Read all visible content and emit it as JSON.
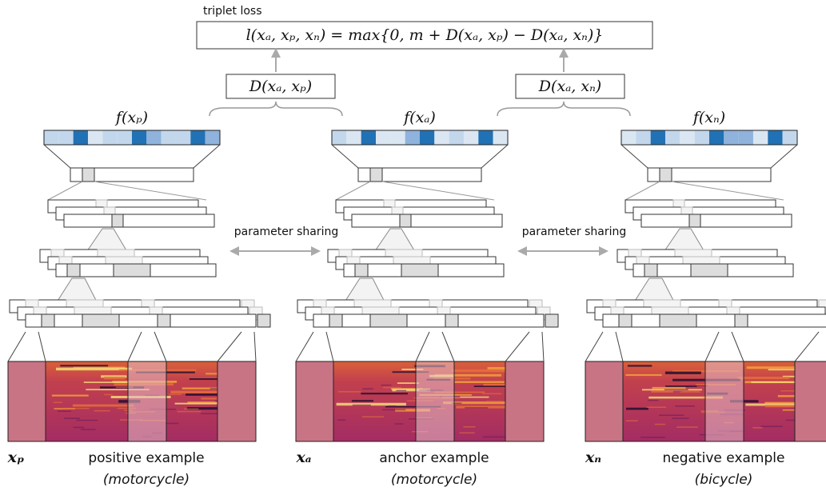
{
  "title": "triplet loss",
  "loss_formula": "l(xₐ, xₚ, xₙ) = max{0, m + D(xₐ, xₚ) − D(xₐ, xₙ)}",
  "distances": [
    "D(xₐ, xₚ)",
    "D(xₐ, xₙ)"
  ],
  "sharing_labels": [
    "parameter sharing",
    "parameter sharing"
  ],
  "branches": [
    {
      "embedding": "f(xₚ)",
      "input": "xₚ",
      "label": "positive example",
      "class": "(motorcycle)"
    },
    {
      "embedding": "f(xₐ)",
      "input": "xₐ",
      "label": "anchor example",
      "class": "(motorcycle)"
    },
    {
      "embedding": "f(xₙ)",
      "input": "xₙ",
      "label": "negative example",
      "class": "(bicycle)"
    }
  ]
}
